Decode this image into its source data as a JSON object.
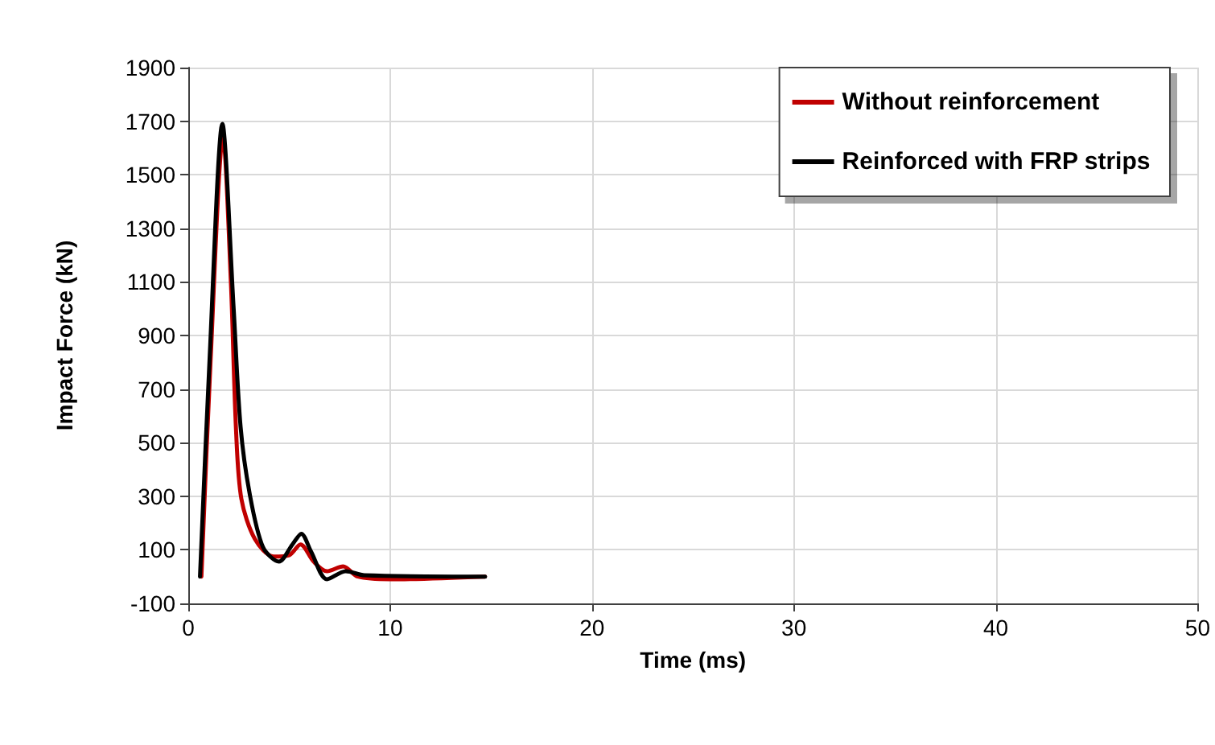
{
  "chart_data": {
    "type": "line",
    "xlabel": "Time (ms)",
    "ylabel": "Impact Force (kN)",
    "xlim": [
      0,
      50
    ],
    "xticks": [
      0,
      10,
      20,
      30,
      40,
      50
    ],
    "ylim": [
      -100,
      1900
    ],
    "yticks": [
      -100,
      100,
      300,
      500,
      700,
      900,
      1100,
      1300,
      1500,
      1700,
      1900
    ],
    "grid": true,
    "legend": "top right",
    "marker": "none",
    "line_style": "solid",
    "series": [
      {
        "name": "Without reinforcement",
        "color": "#c00000",
        "x": [
          0.65,
          1.1,
          1.72,
          2.11,
          2.37,
          2.63,
          3.3,
          4.23,
          5.0,
          5.56,
          6.21,
          6.87,
          7.67,
          8.4,
          10,
          14.7
        ],
        "values": [
          0,
          800,
          1640,
          1100,
          540,
          290,
          140,
          75,
          80,
          120,
          56,
          20,
          38,
          0,
          -10,
          0
        ]
      },
      {
        "name": "Reinforced with FRP strips",
        "color": "#000000",
        "x": [
          0.58,
          1.06,
          1.69,
          2.24,
          2.59,
          3.04,
          3.7,
          4.49,
          5.16,
          5.6,
          6.08,
          6.87,
          7.8,
          8.73,
          14.7
        ],
        "values": [
          0,
          820,
          1690,
          1010,
          560,
          310,
          110,
          56,
          120,
          160,
          94,
          -10,
          20,
          5,
          0
        ]
      }
    ]
  }
}
